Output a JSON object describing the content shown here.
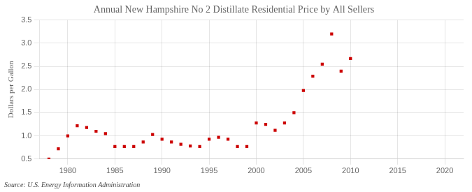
{
  "chart_data": {
    "type": "scatter",
    "title": "Annual New Hampshire No 2 Distillate Residential Price by All Sellers",
    "ylabel": "Dollars per Gallon",
    "annotations": [
      "Source: U.S. Energy Information Administration"
    ],
    "x": [
      1978,
      1979,
      1980,
      1981,
      1982,
      1983,
      1984,
      1985,
      1986,
      1987,
      1988,
      1989,
      1990,
      1991,
      1992,
      1993,
      1994,
      1995,
      1996,
      1997,
      1998,
      1999,
      2000,
      2001,
      2002,
      2003,
      2004,
      2005,
      2006,
      2007,
      2008,
      2009,
      2010
    ],
    "values": [
      0.5,
      0.72,
      1.0,
      1.22,
      1.18,
      1.1,
      1.05,
      0.77,
      0.77,
      0.77,
      0.87,
      1.03,
      0.93,
      0.87,
      0.82,
      0.78,
      0.77,
      0.93,
      0.97,
      0.93,
      0.77,
      0.77,
      1.28,
      1.25,
      1.12,
      1.28,
      1.5,
      1.98,
      2.29,
      2.55,
      3.2,
      2.4,
      2.67
    ],
    "color": "#cc0000",
    "marker": "square",
    "xlim": [
      1977,
      2022
    ],
    "xticks": [
      1980,
      1985,
      1990,
      1995,
      2000,
      2005,
      2010,
      2015,
      2020
    ],
    "ylim": [
      0.5,
      3.5
    ],
    "yticks": [
      0.5,
      {
        "value": 1.0,
        "label": "1.0"
      },
      1.5,
      {
        "value": 2.0,
        "label": "2.0"
      },
      2.5,
      {
        "value": 3.0,
        "label": "3.0"
      },
      3.5
    ],
    "grid": true
  }
}
